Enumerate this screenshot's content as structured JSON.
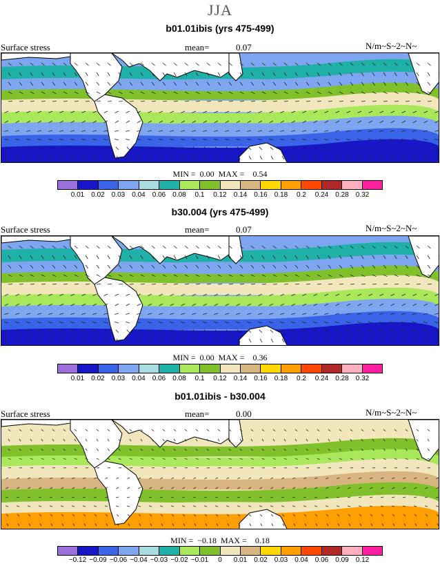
{
  "title": "JJA",
  "variable_label": "Surface stress",
  "units": "N/m~S~2~N~",
  "mean_label": "mean=",
  "min_label": "MIN =",
  "max_label": "MAX =",
  "panels": [
    {
      "title": "b01.01ibis (yrs 475-499)",
      "mean": "0.07",
      "min": "0.00",
      "max": "0.54",
      "colorbar_labels": [
        "0.01",
        "0.02",
        "0.03",
        "0.04",
        "0.06",
        "0.08",
        "0.1",
        "0.12",
        "0.14",
        "0.16",
        "0.18",
        "0.2",
        "0.24",
        "0.28",
        "0.32"
      ],
      "colors": [
        "#9b6fdc",
        "#1717c8",
        "#3a64e8",
        "#7ea6f0",
        "#a8dce0",
        "#1fb0a8",
        "#a8e85a",
        "#80c02a",
        "#f2e6bc",
        "#d8b480",
        "#ffd800",
        "#ffa000",
        "#ff4800",
        "#b02828",
        "#ffb0c0",
        "#ff20a0"
      ]
    },
    {
      "title": "b30.004 (yrs 475-499)",
      "mean": "0.07",
      "min": "0.00",
      "max": "0.36",
      "colorbar_labels": [
        "0.01",
        "0.02",
        "0.03",
        "0.04",
        "0.06",
        "0.08",
        "0.1",
        "0.12",
        "0.14",
        "0.16",
        "0.18",
        "0.2",
        "0.24",
        "0.28",
        "0.32"
      ],
      "colors": [
        "#9b6fdc",
        "#1717c8",
        "#3a64e8",
        "#7ea6f0",
        "#a8dce0",
        "#1fb0a8",
        "#a8e85a",
        "#80c02a",
        "#f2e6bc",
        "#d8b480",
        "#ffd800",
        "#ffa000",
        "#ff4800",
        "#b02828",
        "#ffb0c0",
        "#ff20a0"
      ]
    },
    {
      "title": "b01.01ibis - b30.004",
      "mean": "0.00",
      "min": "−0.18",
      "max": "0.18",
      "colorbar_labels": [
        "−0.12",
        "−0.09",
        "−0.06",
        "−0.04",
        "−0.03",
        "−0.02",
        "−0.01",
        "0",
        "0.01",
        "0.02",
        "0.03",
        "0.04",
        "0.06",
        "0.09",
        "0.12"
      ],
      "colors": [
        "#9b6fdc",
        "#1717c8",
        "#3a64e8",
        "#7ea6f0",
        "#a8dce0",
        "#1fb0a8",
        "#a8e85a",
        "#80c02a",
        "#f2e6bc",
        "#d8b480",
        "#ffd800",
        "#ffa000",
        "#ff4800",
        "#b02828",
        "#ffb0c0",
        "#ff20a0"
      ]
    }
  ]
}
